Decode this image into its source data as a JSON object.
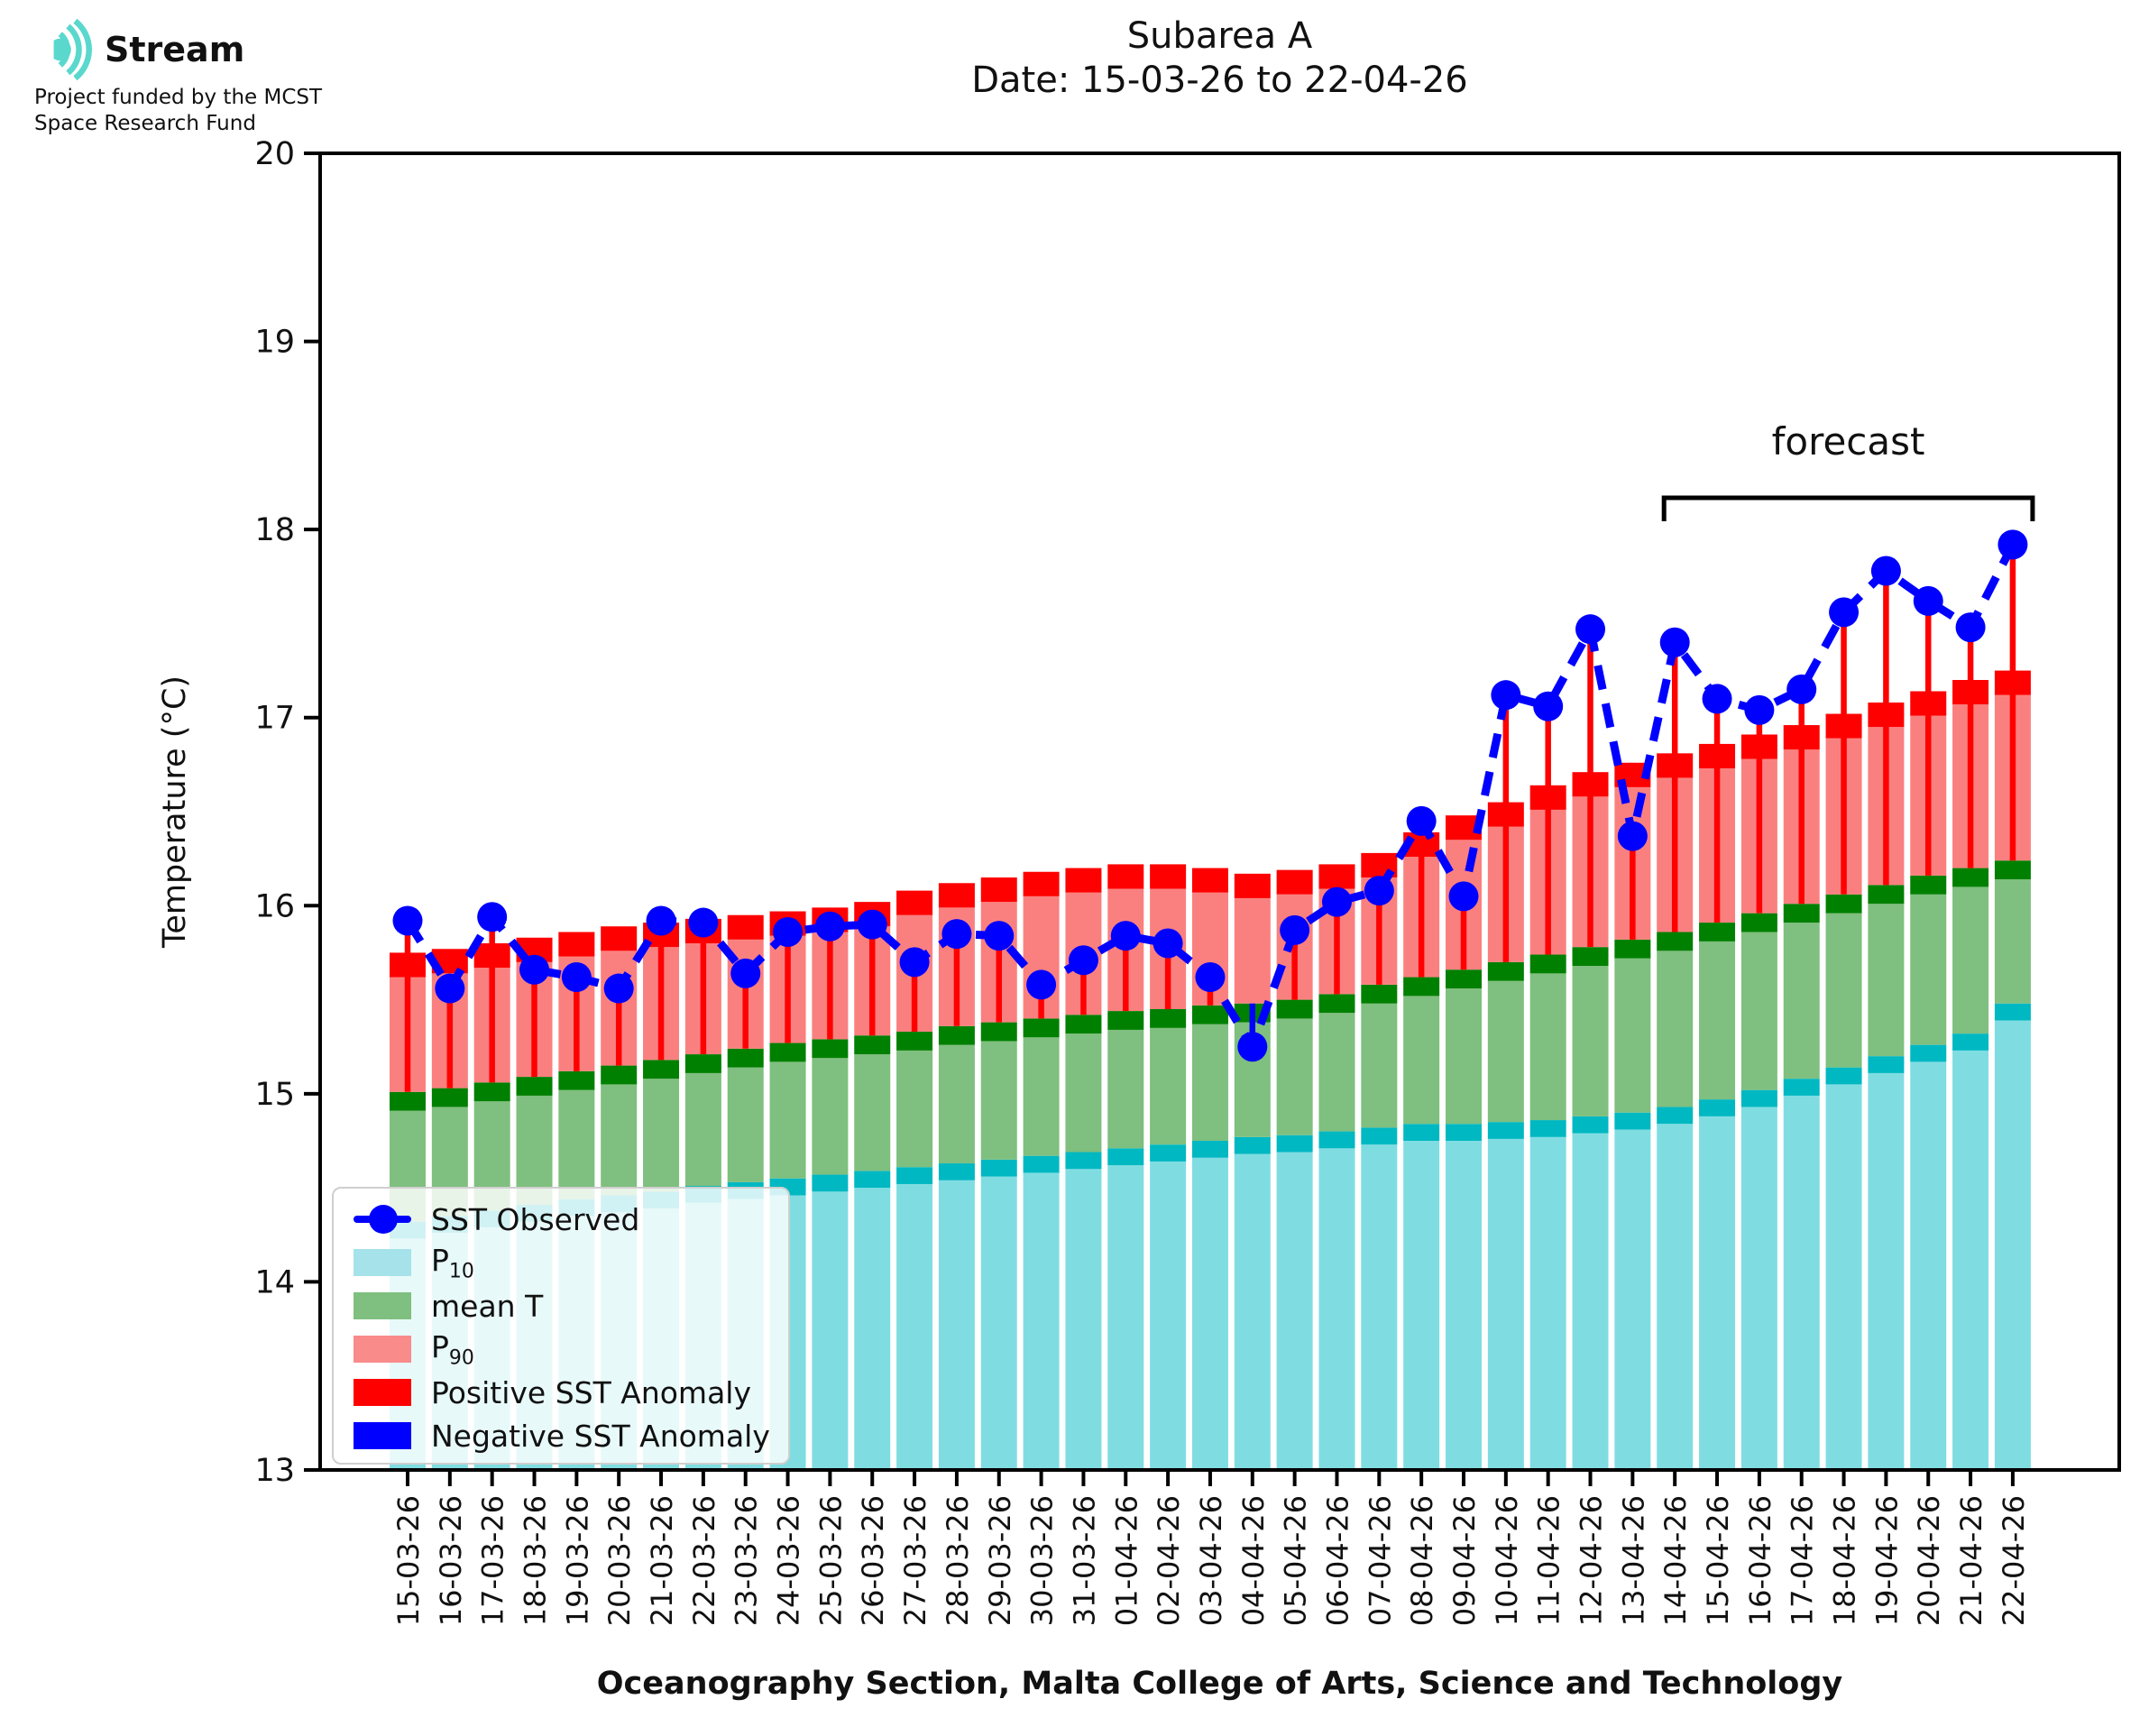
{
  "logo": {
    "name": "Stream",
    "funding_line1": "Project funded by the MCST",
    "funding_line2": "Space Research Fund",
    "icon_color": "#5ad8cd"
  },
  "title": {
    "line1": "Subarea A",
    "line2": "Date: 15-03-26 to 22-04-26"
  },
  "axes": {
    "ylabel": "Temperature (°C)",
    "xlabel": "Oceanography Section, Malta College of Arts, Science and Technology",
    "ylim": [
      13,
      20
    ],
    "yticks": [
      13,
      14,
      15,
      16,
      17,
      18,
      19,
      20
    ],
    "grid": "off"
  },
  "annotations": {
    "forecast_label": "forecast",
    "forecast_start_date": "14-04-26",
    "forecast_end_date": "22-04-26"
  },
  "legend": {
    "position": "lower-left",
    "items": [
      {
        "id": "sst-observed",
        "marker": "line",
        "color": "#0000ff",
        "base": "SST Observed",
        "sub": ""
      },
      {
        "id": "p10",
        "marker": "patch",
        "color": "#a5e2ea",
        "base": "P",
        "sub": "10"
      },
      {
        "id": "mean-t",
        "marker": "patch",
        "color": "#7fbf7f",
        "base": "mean T",
        "sub": ""
      },
      {
        "id": "p90",
        "marker": "patch",
        "color": "#f98b8b",
        "base": "P",
        "sub": "90"
      },
      {
        "id": "positive-sst-anomaly",
        "marker": "patch",
        "color": "#ff0000",
        "base": "Positive SST Anomaly",
        "sub": ""
      },
      {
        "id": "negative-sst-anomaly",
        "marker": "patch",
        "color": "#0000ff",
        "base": "Negative SST Anomaly",
        "sub": ""
      }
    ]
  },
  "colors": {
    "observed_line": "#0000ff",
    "positive_anomaly": "#ff0000",
    "negative_anomaly": "#0000ff",
    "p10_fill": "#7fdde2",
    "p10_cap": "#00b8c2",
    "mean_fill": "#7fbf7f",
    "mean_cap": "#008000",
    "p90_fill": "#fa8080",
    "p90_cap": "#ff0000",
    "axis": "#000000"
  },
  "chart_data": {
    "type": "bar",
    "subtype": "stacked-percentile-bands-with-observed-line",
    "title": "Subarea A",
    "subtitle": "Date: 15-03-26 to 22-04-26",
    "xlabel": "Oceanography Section, Malta College of Arts, Science and Technology",
    "ylabel": "Temperature (°C)",
    "ylim": [
      13,
      20
    ],
    "legend_position": "lower-left",
    "forecast_start_index": 30,
    "categories": [
      "15-03-26",
      "16-03-26",
      "17-03-26",
      "18-03-26",
      "19-03-26",
      "20-03-26",
      "21-03-26",
      "22-03-26",
      "23-03-26",
      "24-03-26",
      "25-03-26",
      "26-03-26",
      "27-03-26",
      "28-03-26",
      "29-03-26",
      "30-03-26",
      "31-03-26",
      "01-04-26",
      "02-04-26",
      "03-04-26",
      "04-04-26",
      "05-04-26",
      "06-04-26",
      "07-04-26",
      "08-04-26",
      "09-04-26",
      "10-04-26",
      "11-04-26",
      "12-04-26",
      "13-04-26",
      "14-04-26",
      "15-04-26",
      "16-04-26",
      "17-04-26",
      "18-04-26",
      "19-04-26",
      "20-04-26",
      "21-04-26",
      "22-04-26"
    ],
    "series": [
      {
        "name": "SST Observed",
        "values": [
          15.92,
          15.56,
          15.94,
          15.66,
          15.62,
          15.56,
          15.92,
          15.91,
          15.64,
          15.86,
          15.89,
          15.9,
          15.7,
          15.85,
          15.84,
          15.58,
          15.71,
          15.84,
          15.8,
          15.62,
          15.25,
          15.87,
          16.02,
          16.08,
          16.45,
          16.05,
          17.12,
          17.06,
          17.47,
          16.37,
          17.4,
          17.1,
          17.04,
          17.15,
          17.56,
          17.78,
          17.62,
          17.48,
          17.92
        ]
      },
      {
        "name": "P10",
        "values": [
          14.32,
          14.35,
          14.38,
          14.41,
          14.44,
          14.46,
          14.48,
          14.51,
          14.53,
          14.55,
          14.57,
          14.59,
          14.61,
          14.63,
          14.65,
          14.67,
          14.69,
          14.71,
          14.73,
          14.75,
          14.77,
          14.78,
          14.8,
          14.82,
          14.84,
          14.84,
          14.85,
          14.86,
          14.88,
          14.9,
          14.93,
          14.97,
          15.02,
          15.08,
          15.14,
          15.2,
          15.26,
          15.32,
          15.48
        ]
      },
      {
        "name": "mean T",
        "values": [
          15.01,
          15.03,
          15.06,
          15.09,
          15.12,
          15.15,
          15.18,
          15.21,
          15.24,
          15.27,
          15.29,
          15.31,
          15.33,
          15.36,
          15.38,
          15.4,
          15.42,
          15.44,
          15.45,
          15.47,
          15.48,
          15.5,
          15.53,
          15.58,
          15.62,
          15.66,
          15.7,
          15.74,
          15.78,
          15.82,
          15.86,
          15.91,
          15.96,
          16.01,
          16.06,
          16.11,
          16.16,
          16.2,
          16.24
        ]
      },
      {
        "name": "P90",
        "values": [
          15.75,
          15.77,
          15.8,
          15.83,
          15.86,
          15.89,
          15.91,
          15.93,
          15.95,
          15.97,
          15.99,
          16.02,
          16.08,
          16.12,
          16.15,
          16.18,
          16.2,
          16.22,
          16.22,
          16.2,
          16.17,
          16.19,
          16.22,
          16.28,
          16.39,
          16.48,
          16.55,
          16.64,
          16.71,
          16.76,
          16.81,
          16.86,
          16.91,
          16.96,
          17.02,
          17.08,
          17.14,
          17.2,
          17.25
        ]
      }
    ]
  }
}
